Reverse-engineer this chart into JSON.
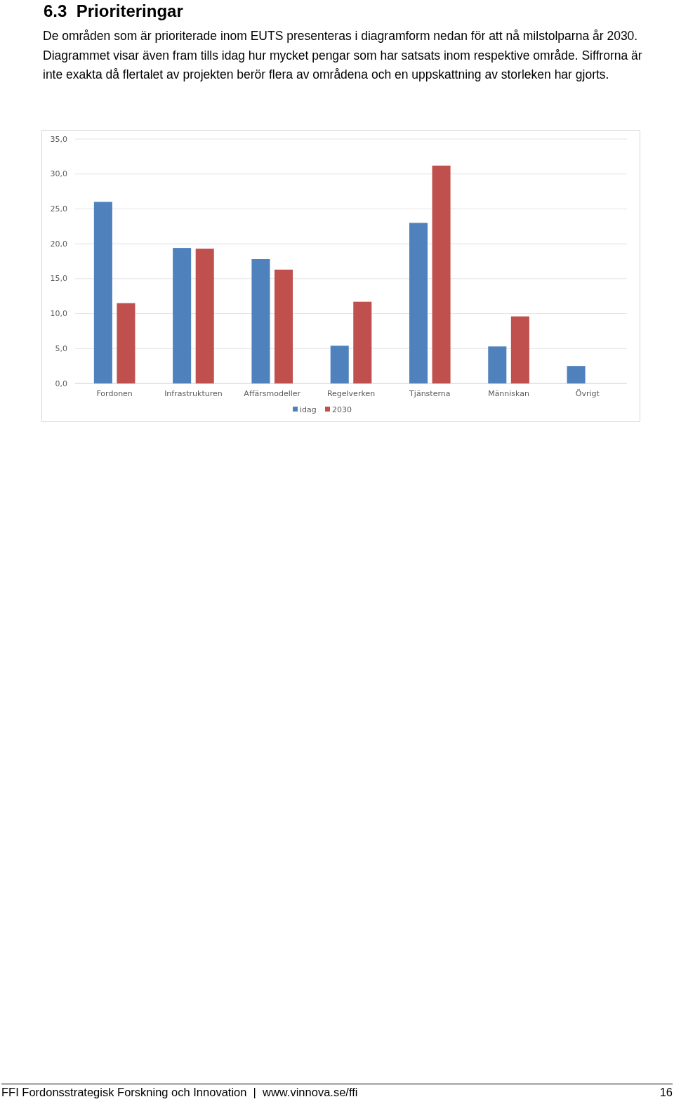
{
  "chart_data": {
    "type": "bar",
    "title": "6.3  Prioriteringar",
    "subtitle": "De områden som är prioriterade inom EUTS presenteras i diagramform nedan för att nå milstolparna år 2030. Diagrammet visar även fram tills idag hur mycket pengar som har satsats inom respektive område. Siffrorna är inte exakta då flertalet av projekten berör flera av områdena och en uppskattning av storleken har gjorts.",
    "categories": [
      "Fordonen",
      "Infrastrukturen",
      "Affärsmodeller",
      "Regelverken",
      "Tjänsterna",
      "Människan",
      "Övrigt"
    ],
    "series": [
      {
        "name": "idag",
        "color": "#4f81bd",
        "values": [
          26.0,
          19.4,
          17.8,
          5.4,
          23.0,
          5.3,
          2.5
        ]
      },
      {
        "name": "2030",
        "color": "#c0504d",
        "values": [
          11.5,
          19.3,
          16.3,
          11.7,
          31.2,
          9.6,
          null
        ]
      }
    ],
    "ylim": [
      0,
      35
    ],
    "yticks": [
      {
        "value": 0,
        "label": "0,0"
      },
      {
        "value": 5,
        "label": "5,0"
      },
      {
        "value": 10,
        "label": "10,0"
      },
      {
        "value": 15,
        "label": "15,0"
      },
      {
        "value": 20,
        "label": "20,0"
      },
      {
        "value": 25,
        "label": "25,0"
      },
      {
        "value": 30,
        "label": "30,0"
      },
      {
        "value": 35,
        "label": "35,0"
      }
    ],
    "grid": "y",
    "legend": "bottom",
    "annotations": [
      "FFI Fordonsstrategisk Forskning och Innovation  |  www.vinnova.se/ffi",
      "16"
    ]
  }
}
